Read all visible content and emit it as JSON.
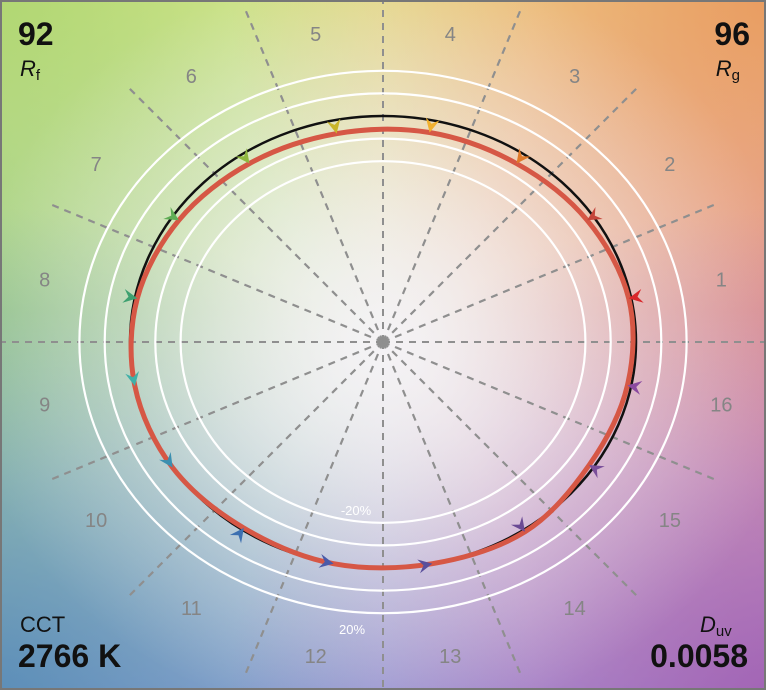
{
  "chart_data": {
    "type": "color-vector-graphic",
    "corners": {
      "rf": {
        "value": "92",
        "label": "R",
        "sub": "f"
      },
      "rg": {
        "value": "96",
        "label": "R",
        "sub": "g"
      },
      "cct": {
        "label": "CCT",
        "value": "2766 K"
      },
      "duv": {
        "label": "D",
        "sub": "uv",
        "value": "0.0058"
      }
    },
    "bin_labels": [
      "1",
      "2",
      "3",
      "4",
      "5",
      "6",
      "7",
      "8",
      "9",
      "10",
      "11",
      "12",
      "13",
      "14",
      "15",
      "16"
    ],
    "ring_labels": {
      "inner": "-20%",
      "outer": "20%"
    },
    "rings": [
      -0.2,
      -0.1,
      0.0,
      0.1,
      0.2
    ],
    "reference_circle": 1.0,
    "test_shape": [
      {
        "bin": 1,
        "r": 0.99
      },
      {
        "bin": 2,
        "r": 0.97
      },
      {
        "bin": 3,
        "r": 0.95
      },
      {
        "bin": 4,
        "r": 0.945
      },
      {
        "bin": 5,
        "r": 0.94
      },
      {
        "bin": 6,
        "r": 0.95
      },
      {
        "bin": 7,
        "r": 0.97
      },
      {
        "bin": 8,
        "r": 0.99
      },
      {
        "bin": 9,
        "r": 1.0
      },
      {
        "bin": 10,
        "r": 1.0
      },
      {
        "bin": 11,
        "r": 0.99
      },
      {
        "bin": 12,
        "r": 1.0
      },
      {
        "bin": 13,
        "r": 1.0
      },
      {
        "bin": 14,
        "r": 1.01
      },
      {
        "bin": 15,
        "r": 0.98
      },
      {
        "bin": 16,
        "r": 0.985
      }
    ],
    "arrow_colors": [
      "#d9262a",
      "#c4453a",
      "#e07a2a",
      "#f0b030",
      "#c9b52a",
      "#8fb840",
      "#5fae55",
      "#3ea070",
      "#40b0a8",
      "#3b8fb0",
      "#3c6fb0",
      "#4a5aa8",
      "#5a4f9c",
      "#6a4a94",
      "#7a4f9a",
      "#8a4aa0"
    ]
  }
}
